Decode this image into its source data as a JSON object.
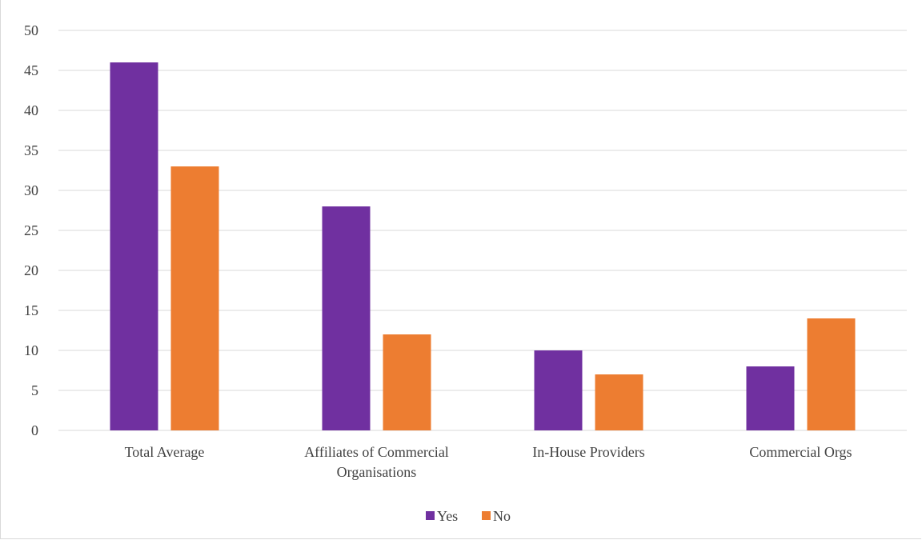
{
  "chart_data": {
    "type": "bar",
    "categories": [
      [
        "Total Average"
      ],
      [
        "Affiliates of Commercial",
        "Organisations"
      ],
      [
        "In-House Providers"
      ],
      [
        "Commercial Orgs"
      ]
    ],
    "series": [
      {
        "name": "Yes",
        "values": [
          46,
          28,
          10,
          8
        ],
        "color": "#7030a0"
      },
      {
        "name": "No",
        "values": [
          33,
          12,
          7,
          14
        ],
        "color": "#ed7d31"
      }
    ],
    "ylim": [
      0,
      50
    ],
    "yticks": [
      0,
      5,
      10,
      15,
      20,
      25,
      30,
      35,
      40,
      45,
      50
    ],
    "grid": true,
    "legend_position": "bottom",
    "gridline_color": "#d9d9d9"
  }
}
